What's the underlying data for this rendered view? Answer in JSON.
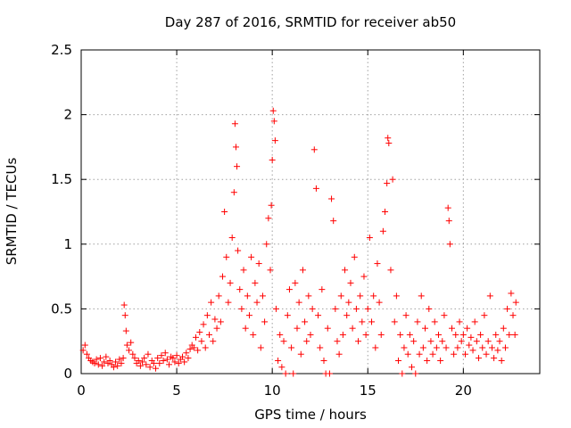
{
  "chart_data": {
    "type": "scatter",
    "title": "Day 287 of 2016, SRMTID for receiver ab50",
    "xlabel": "GPS time / hours",
    "ylabel": "SRMTID / TECUs",
    "xlim": [
      0,
      24
    ],
    "ylim": [
      0,
      2.5
    ],
    "xticks": [
      0,
      5,
      10,
      15,
      20
    ],
    "xtick_labels": [
      "0",
      "5",
      "10",
      "15",
      "20"
    ],
    "yticks": [
      0,
      0.5,
      1,
      1.5,
      2,
      2.5
    ],
    "ytick_labels": [
      "0",
      "0.5",
      "1",
      "1.5",
      "2",
      "2.5"
    ],
    "grid": true,
    "marker": "+",
    "series": [
      {
        "name": "SRMTID",
        "color": "#ff0000",
        "points": [
          [
            0.1,
            0.18
          ],
          [
            0.2,
            0.22
          ],
          [
            0.3,
            0.15
          ],
          [
            0.4,
            0.12
          ],
          [
            0.5,
            0.1
          ],
          [
            0.6,
            0.09
          ],
          [
            0.7,
            0.08
          ],
          [
            0.8,
            0.11
          ],
          [
            0.9,
            0.07
          ],
          [
            1.0,
            0.12
          ],
          [
            1.1,
            0.06
          ],
          [
            1.2,
            0.09
          ],
          [
            1.3,
            0.13
          ],
          [
            1.4,
            0.08
          ],
          [
            1.5,
            0.1
          ],
          [
            1.6,
            0.07
          ],
          [
            1.7,
            0.05
          ],
          [
            1.8,
            0.09
          ],
          [
            1.9,
            0.06
          ],
          [
            2.0,
            0.11
          ],
          [
            2.1,
            0.08
          ],
          [
            2.2,
            0.12
          ],
          [
            2.25,
            0.53
          ],
          [
            2.3,
            0.45
          ],
          [
            2.35,
            0.33
          ],
          [
            2.4,
            0.22
          ],
          [
            2.5,
            0.18
          ],
          [
            2.6,
            0.24
          ],
          [
            2.7,
            0.15
          ],
          [
            2.8,
            0.12
          ],
          [
            2.9,
            0.08
          ],
          [
            3.0,
            0.1
          ],
          [
            3.1,
            0.06
          ],
          [
            3.2,
            0.09
          ],
          [
            3.3,
            0.12
          ],
          [
            3.4,
            0.07
          ],
          [
            3.5,
            0.15
          ],
          [
            3.6,
            0.05
          ],
          [
            3.7,
            0.1
          ],
          [
            3.8,
            0.08
          ],
          [
            3.9,
            0.04
          ],
          [
            4.0,
            0.12
          ],
          [
            4.1,
            0.08
          ],
          [
            4.2,
            0.14
          ],
          [
            4.3,
            0.1
          ],
          [
            4.4,
            0.16
          ],
          [
            4.5,
            0.11
          ],
          [
            4.6,
            0.07
          ],
          [
            4.7,
            0.13
          ],
          [
            4.8,
            0.12
          ],
          [
            4.9,
            0.09
          ],
          [
            5.0,
            0.14
          ],
          [
            5.1,
            0.08
          ],
          [
            5.2,
            0.11
          ],
          [
            5.3,
            0.13
          ],
          [
            5.4,
            0.09
          ],
          [
            5.5,
            0.16
          ],
          [
            5.6,
            0.12
          ],
          [
            5.7,
            0.19
          ],
          [
            5.8,
            0.22
          ],
          [
            5.9,
            0.2
          ],
          [
            6.0,
            0.28
          ],
          [
            6.1,
            0.18
          ],
          [
            6.2,
            0.32
          ],
          [
            6.3,
            0.25
          ],
          [
            6.4,
            0.38
          ],
          [
            6.5,
            0.2
          ],
          [
            6.6,
            0.45
          ],
          [
            6.7,
            0.3
          ],
          [
            6.8,
            0.55
          ],
          [
            6.9,
            0.25
          ],
          [
            7.0,
            0.42
          ],
          [
            7.1,
            0.35
          ],
          [
            7.2,
            0.6
          ],
          [
            7.3,
            0.4
          ],
          [
            7.4,
            0.75
          ],
          [
            7.5,
            1.25
          ],
          [
            7.6,
            0.9
          ],
          [
            7.7,
            0.55
          ],
          [
            7.8,
            0.7
          ],
          [
            7.9,
            1.05
          ],
          [
            8.0,
            1.4
          ],
          [
            8.05,
            1.93
          ],
          [
            8.1,
            1.75
          ],
          [
            8.15,
            1.6
          ],
          [
            8.2,
            0.95
          ],
          [
            8.3,
            0.65
          ],
          [
            8.4,
            0.5
          ],
          [
            8.5,
            0.8
          ],
          [
            8.6,
            0.35
          ],
          [
            8.7,
            0.6
          ],
          [
            8.8,
            0.45
          ],
          [
            8.9,
            0.9
          ],
          [
            9.0,
            0.3
          ],
          [
            9.1,
            0.7
          ],
          [
            9.2,
            0.55
          ],
          [
            9.3,
            0.85
          ],
          [
            9.4,
            0.2
          ],
          [
            9.5,
            0.6
          ],
          [
            9.6,
            0.4
          ],
          [
            9.7,
            1.0
          ],
          [
            9.8,
            1.2
          ],
          [
            9.9,
            0.8
          ],
          [
            9.95,
            1.3
          ],
          [
            10.0,
            1.65
          ],
          [
            10.05,
            2.03
          ],
          [
            10.1,
            1.95
          ],
          [
            10.15,
            1.8
          ],
          [
            10.2,
            0.5
          ],
          [
            10.3,
            0.1
          ],
          [
            10.4,
            0.3
          ],
          [
            10.5,
            0.05
          ],
          [
            10.6,
            0.25
          ],
          [
            10.7,
            0.0
          ],
          [
            10.8,
            0.45
          ],
          [
            10.9,
            0.65
          ],
          [
            11.0,
            0.2
          ],
          [
            11.1,
            0.0
          ],
          [
            11.2,
            0.7
          ],
          [
            11.3,
            0.35
          ],
          [
            11.4,
            0.55
          ],
          [
            11.5,
            0.15
          ],
          [
            11.6,
            0.8
          ],
          [
            11.7,
            0.4
          ],
          [
            11.8,
            0.25
          ],
          [
            11.9,
            0.6
          ],
          [
            12.0,
            0.3
          ],
          [
            12.1,
            0.5
          ],
          [
            12.2,
            1.73
          ],
          [
            12.3,
            1.43
          ],
          [
            12.4,
            0.45
          ],
          [
            12.5,
            0.2
          ],
          [
            12.6,
            0.65
          ],
          [
            12.7,
            0.1
          ],
          [
            12.8,
            0.0
          ],
          [
            12.9,
            0.35
          ],
          [
            13.0,
            0.0
          ],
          [
            13.1,
            1.35
          ],
          [
            13.2,
            1.18
          ],
          [
            13.3,
            0.5
          ],
          [
            13.4,
            0.25
          ],
          [
            13.5,
            0.15
          ],
          [
            13.6,
            0.6
          ],
          [
            13.7,
            0.3
          ],
          [
            13.8,
            0.8
          ],
          [
            13.9,
            0.45
          ],
          [
            14.0,
            0.55
          ],
          [
            14.1,
            0.7
          ],
          [
            14.2,
            0.35
          ],
          [
            14.3,
            0.9
          ],
          [
            14.4,
            0.5
          ],
          [
            14.5,
            0.25
          ],
          [
            14.6,
            0.6
          ],
          [
            14.7,
            0.4
          ],
          [
            14.8,
            0.75
          ],
          [
            14.9,
            0.3
          ],
          [
            15.0,
            0.5
          ],
          [
            15.1,
            1.05
          ],
          [
            15.2,
            0.4
          ],
          [
            15.3,
            0.6
          ],
          [
            15.4,
            0.2
          ],
          [
            15.5,
            0.85
          ],
          [
            15.6,
            0.55
          ],
          [
            15.7,
            0.3
          ],
          [
            15.8,
            1.1
          ],
          [
            15.9,
            1.25
          ],
          [
            16.0,
            1.47
          ],
          [
            16.05,
            1.82
          ],
          [
            16.1,
            1.78
          ],
          [
            16.2,
            0.8
          ],
          [
            16.3,
            1.5
          ],
          [
            16.4,
            0.4
          ],
          [
            16.5,
            0.6
          ],
          [
            16.6,
            0.1
          ],
          [
            16.7,
            0.3
          ],
          [
            16.8,
            0.0
          ],
          [
            16.9,
            0.2
          ],
          [
            17.0,
            0.45
          ],
          [
            17.1,
            0.15
          ],
          [
            17.2,
            0.3
          ],
          [
            17.3,
            0.05
          ],
          [
            17.4,
            0.25
          ],
          [
            17.5,
            0.0
          ],
          [
            17.6,
            0.4
          ],
          [
            17.7,
            0.15
          ],
          [
            17.8,
            0.6
          ],
          [
            17.9,
            0.2
          ],
          [
            18.0,
            0.35
          ],
          [
            18.1,
            0.1
          ],
          [
            18.2,
            0.5
          ],
          [
            18.3,
            0.25
          ],
          [
            18.4,
            0.15
          ],
          [
            18.5,
            0.4
          ],
          [
            18.6,
            0.2
          ],
          [
            18.7,
            0.3
          ],
          [
            18.8,
            0.1
          ],
          [
            18.9,
            0.25
          ],
          [
            19.0,
            0.45
          ],
          [
            19.1,
            0.2
          ],
          [
            19.2,
            1.28
          ],
          [
            19.25,
            1.18
          ],
          [
            19.3,
            1.0
          ],
          [
            19.4,
            0.35
          ],
          [
            19.5,
            0.15
          ],
          [
            19.6,
            0.3
          ],
          [
            19.7,
            0.2
          ],
          [
            19.8,
            0.4
          ],
          [
            19.9,
            0.25
          ],
          [
            20.0,
            0.3
          ],
          [
            20.1,
            0.15
          ],
          [
            20.2,
            0.35
          ],
          [
            20.3,
            0.22
          ],
          [
            20.4,
            0.28
          ],
          [
            20.5,
            0.18
          ],
          [
            20.6,
            0.4
          ],
          [
            20.7,
            0.25
          ],
          [
            20.8,
            0.12
          ],
          [
            20.9,
            0.3
          ],
          [
            21.0,
            0.2
          ],
          [
            21.1,
            0.45
          ],
          [
            21.2,
            0.15
          ],
          [
            21.3,
            0.25
          ],
          [
            21.4,
            0.6
          ],
          [
            21.5,
            0.2
          ],
          [
            21.6,
            0.12
          ],
          [
            21.7,
            0.3
          ],
          [
            21.8,
            0.18
          ],
          [
            21.9,
            0.25
          ],
          [
            22.0,
            0.1
          ],
          [
            22.1,
            0.35
          ],
          [
            22.2,
            0.2
          ],
          [
            22.3,
            0.5
          ],
          [
            22.4,
            0.3
          ],
          [
            22.5,
            0.62
          ],
          [
            22.6,
            0.45
          ],
          [
            22.7,
            0.3
          ],
          [
            22.75,
            0.55
          ]
        ]
      }
    ]
  }
}
